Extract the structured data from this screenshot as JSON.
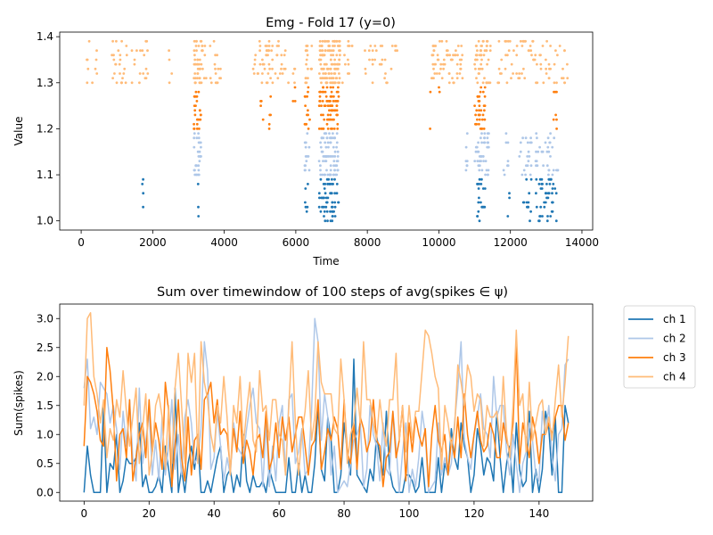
{
  "figure": {
    "colors": {
      "ch1": "#1f77b4",
      "ch2": "#aec7e8",
      "ch3": "#ff7f0e",
      "ch4": "#ffbb78"
    }
  },
  "chart_data": [
    {
      "type": "scatter",
      "title": "Emg - Fold 17 (y=0)",
      "xlabel": "Time",
      "ylabel": "Value",
      "xlim": [
        -600,
        14300
      ],
      "ylim": [
        0.98,
        1.41
      ],
      "xticks": [
        0,
        2000,
        4000,
        6000,
        8000,
        10000,
        12000,
        14000
      ],
      "yticks": [
        1.0,
        1.1,
        1.2,
        1.3,
        1.4
      ],
      "xtick_labels": [
        "0",
        "2000",
        "4000",
        "6000",
        "8000",
        "10000",
        "12000",
        "14000"
      ],
      "ytick_labels": [
        "1.0",
        "1.1",
        "1.2",
        "1.3",
        "1.4"
      ],
      "series": [
        {
          "color": "#1f77b4",
          "band": [
            1.0,
            1.09
          ],
          "clusters": [
            [
              1700,
              1750,
              4
            ],
            [
              3200,
              3300,
              3
            ],
            [
              6250,
              6350,
              6
            ],
            [
              6650,
              7200,
              60
            ],
            [
              11050,
              11300,
              20
            ],
            [
              11900,
              12000,
              3
            ],
            [
              12350,
              12600,
              12
            ],
            [
              12700,
              13300,
              45
            ]
          ]
        },
        {
          "color": "#aec7e8",
          "band": [
            1.1,
            1.19
          ],
          "clusters": [
            [
              3150,
              3350,
              30
            ],
            [
              6250,
              6400,
              14
            ],
            [
              6650,
              7200,
              80
            ],
            [
              10750,
              10800,
              7
            ],
            [
              11000,
              11400,
              45
            ],
            [
              11800,
              11950,
              8
            ],
            [
              12250,
              12600,
              20
            ],
            [
              12700,
              13400,
              32
            ]
          ]
        },
        {
          "color": "#ff7f0e",
          "band": [
            1.2,
            1.29
          ],
          "clusters": [
            [
              3150,
              3350,
              25
            ],
            [
              5000,
              5100,
              4
            ],
            [
              5250,
              5300,
              5
            ],
            [
              5900,
              6000,
              3
            ],
            [
              6250,
              6400,
              14
            ],
            [
              6650,
              7200,
              80
            ],
            [
              9750,
              9800,
              2
            ],
            [
              10000,
              10050,
              2
            ],
            [
              11000,
              11300,
              35
            ],
            [
              13200,
              13300,
              7
            ]
          ]
        },
        {
          "color": "#ffbb78",
          "band": [
            1.3,
            1.39
          ],
          "clusters": [
            [
              150,
              450,
              10
            ],
            [
              850,
              1300,
              25
            ],
            [
              1400,
              1900,
              18
            ],
            [
              2450,
              2550,
              4
            ],
            [
              3150,
              3400,
              45
            ],
            [
              3400,
              3900,
              20
            ],
            [
              4800,
              5350,
              40
            ],
            [
              5350,
              5800,
              18
            ],
            [
              5900,
              6000,
              4
            ],
            [
              6250,
              6450,
              20
            ],
            [
              6650,
              7250,
              130
            ],
            [
              7300,
              7600,
              12
            ],
            [
              7900,
              8200,
              10
            ],
            [
              8200,
              8850,
              20
            ],
            [
              9800,
              10300,
              40
            ],
            [
              10300,
              10700,
              25
            ],
            [
              11000,
              11450,
              50
            ],
            [
              11650,
              12100,
              20
            ],
            [
              12150,
              12450,
              15
            ],
            [
              12500,
              13150,
              30
            ],
            [
              13200,
              13600,
              15
            ]
          ]
        }
      ]
    },
    {
      "type": "line",
      "title": "Sum over timewindow of 100 steps of avg(spikes ∈ ψ)",
      "xlabel": "",
      "ylabel": "Sum(spikes)",
      "xlim": [
        -7.5,
        156.5
      ],
      "ylim": [
        -0.15,
        3.25
      ],
      "xticks": [
        0,
        20,
        40,
        60,
        80,
        100,
        120,
        140
      ],
      "yticks": [
        0.0,
        0.5,
        1.0,
        1.5,
        2.0,
        2.5,
        3.0
      ],
      "xtick_labels": [
        "0",
        "20",
        "40",
        "60",
        "80",
        "100",
        "120",
        "140"
      ],
      "ytick_labels": [
        "0.0",
        "0.5",
        "1.0",
        "1.5",
        "2.0",
        "2.5",
        "3.0"
      ],
      "legend": {
        "placement": "outside-right-top"
      },
      "series": [
        {
          "name": "ch 1",
          "color": "#1f77b4",
          "values": [
            0.0,
            0.8,
            0.3,
            0.0,
            0.0,
            0.0,
            1.5,
            0.0,
            0.5,
            0.4,
            1.0,
            0.0,
            0.2,
            0.6,
            0.5,
            0.5,
            0.6,
            1.2,
            0.1,
            0.3,
            0.0,
            0.0,
            0.1,
            0.3,
            0.0,
            0.8,
            0.4,
            0.0,
            1.8,
            0.0,
            0.4,
            0.0,
            0.5,
            0.8,
            0.4,
            0.9,
            0.0,
            0.0,
            0.2,
            0.0,
            0.3,
            0.6,
            0.8,
            0.0,
            0.3,
            0.4,
            0.0,
            0.3,
            0.1,
            1.0,
            0.2,
            0.0,
            0.3,
            0.1,
            0.1,
            0.2,
            0.0,
            0.4,
            0.2,
            0.0,
            0.0,
            0.0,
            0.0,
            0.6,
            0.0,
            0.0,
            0.5,
            0.0,
            0.3,
            0.0,
            0.0,
            0.5,
            1.5,
            0.4,
            0.2,
            1.3,
            0.9,
            0.0,
            0.0,
            0.3,
            1.2,
            0.7,
            0.3,
            2.3,
            0.3,
            0.2,
            0.1,
            0.0,
            0.4,
            0.2,
            1.0,
            0.6,
            0.3,
            1.4,
            0.4,
            0.1,
            0.0,
            0.0,
            0.0,
            0.3,
            0.3,
            0.2,
            0.0,
            0.1,
            0.6,
            0.0,
            0.0,
            0.0,
            0.0,
            0.6,
            0.0,
            0.5,
            0.3,
            1.1,
            0.6,
            0.4,
            1.2,
            0.8,
            0.6,
            0.0,
            0.3,
            1.1,
            0.8,
            0.3,
            0.6,
            0.5,
            0.2,
            1.4,
            0.6,
            0.0,
            0.5,
            0.8,
            0.0,
            1.2,
            0.4,
            0.1,
            0.2,
            1.4,
            0.0,
            0.4,
            0.0,
            0.4,
            1.4,
            1.1,
            0.3,
            1.3,
            0.0,
            0.0,
            1.5,
            1.2
          ]
        },
        {
          "name": "ch 2",
          "color": "#aec7e8",
          "values": [
            1.8,
            2.3,
            1.1,
            1.3,
            1.0,
            1.9,
            1.8,
            1.7,
            1.2,
            1.5,
            1.1,
            0.4,
            1.4,
            0.8,
            1.6,
            0.6,
            0.2,
            1.8,
            0.5,
            0.9,
            1.4,
            0.3,
            0.9,
            0.2,
            1.3,
            0.3,
            0.8,
            1.6,
            0.4,
            1.0,
            0.3,
            1.3,
            1.6,
            1.2,
            0.5,
            0.6,
            1.1,
            2.6,
            2.1,
            0.4,
            0.6,
            1.4,
            0.8,
            0.2,
            0.6,
            0.3,
            1.2,
            0.8,
            0.7,
            0.6,
            1.1,
            1.5,
            1.8,
            1.2,
            1.1,
            0.1,
            1.2,
            0.1,
            0.8,
            0.2,
            1.2,
            1.5,
            0.3,
            1.6,
            1.7,
            0.5,
            0.7,
            1.1,
            0.3,
            0.4,
            1.4,
            3.0,
            2.6,
            0.9,
            1.7,
            1.3,
            0.3,
            0.8,
            0.0,
            0.1,
            0.2,
            0.1,
            0.5,
            0.9,
            1.0,
            1.2,
            0.1,
            0.4,
            1.5,
            1.0,
            0.8,
            0.2,
            1.2,
            0.4,
            0.3,
            1.4,
            0.8,
            0.0,
            0.7,
            1.2,
            0.0,
            0.4,
            0.1,
            0.6,
            1.4,
            1.0,
            0.0,
            0.1,
            0.2,
            1.2,
            0.3,
            0.6,
            0.3,
            0.5,
            1.2,
            1.8,
            2.6,
            0.9,
            0.6,
            0.4,
            1.0,
            1.3,
            1.7,
            1.1,
            1.0,
            0.6,
            2.0,
            1.3,
            1.5,
            1.5,
            0.7,
            0.3,
            1.0,
            0.5,
            0.0,
            0.5,
            0.7,
            1.2,
            0.9,
            0.3,
            0.2,
            1.4,
            1.0,
            1.5,
            0.6,
            0.2,
            1.0,
            1.1,
            2.2,
            2.3
          ]
        },
        {
          "name": "ch 3",
          "color": "#ff7f0e",
          "values": [
            0.8,
            2.0,
            1.9,
            1.7,
            1.4,
            0.9,
            0.8,
            2.5,
            2.1,
            1.4,
            0.2,
            1.0,
            1.1,
            0.6,
            1.6,
            0.2,
            0.6,
            1.0,
            1.2,
            0.6,
            1.6,
            0.7,
            1.2,
            0.9,
            0.4,
            1.9,
            1.4,
            0.1,
            0.8,
            1.6,
            0.6,
            0.2,
            1.3,
            0.3,
            0.9,
            1.0,
            0.4,
            1.6,
            1.7,
            1.9,
            1.2,
            1.6,
            1.0,
            1.1,
            1.0,
            0.4,
            1.1,
            0.7,
            1.4,
            0.5,
            0.9,
            0.7,
            0.3,
            0.9,
            1.0,
            0.6,
            1.4,
            0.4,
            0.6,
            1.2,
            0.6,
            1.3,
            0.9,
            1.3,
            0.7,
            1.0,
            1.3,
            1.3,
            0.8,
            0.3,
            0.8,
            0.9,
            1.6,
            0.4,
            0.7,
            1.1,
            0.9,
            1.3,
            1.1,
            0.4,
            1.6,
            0.7,
            0.5,
            1.2,
            0.4,
            1.3,
            1.1,
            0.7,
            0.9,
            1.6,
            0.9,
            0.8,
            0.1,
            0.6,
            0.7,
            1.4,
            0.6,
            0.9,
            1.5,
            0.2,
            1.2,
            0.7,
            1.3,
            1.0,
            0.8,
            1.1,
            0.1,
            1.0,
            1.5,
            0.9,
            0.7,
            1.0,
            0.3,
            0.9,
            0.6,
            1.3,
            0.6,
            1.7,
            1.0,
            0.6,
            1.0,
            1.4,
            0.9,
            0.7,
            0.8,
            1.2,
            1.0,
            0.6,
            0.6,
            1.2,
            0.9,
            0.7,
            1.2,
            2.6,
            0.5,
            1.2,
            0.9,
            0.6,
            1.3,
            1.0,
            0.5,
            1.0,
            1.0,
            1.2,
            1.0,
            1.3,
            1.5,
            1.5,
            0.9,
            1.2
          ]
        },
        {
          "name": "ch 4",
          "color": "#ffbb78",
          "values": [
            1.5,
            3.0,
            3.1,
            2.0,
            1.7,
            1.2,
            1.6,
            0.6,
            1.1,
            0.9,
            1.6,
            1.3,
            2.1,
            1.4,
            0.8,
            1.3,
            1.8,
            0.5,
            1.1,
            1.7,
            0.3,
            0.7,
            1.5,
            1.7,
            1.3,
            0.4,
            1.5,
            0.5,
            1.8,
            2.4,
            1.5,
            0.5,
            2.4,
            1.9,
            2.4,
            0.5,
            2.6,
            1.9,
            1.6,
            1.0,
            0.7,
            1.5,
            1.2,
            2.0,
            1.3,
            0.3,
            1.5,
            1.2,
            2.0,
            0.8,
            1.4,
            1.9,
            0.9,
            0.7,
            2.1,
            1.4,
            1.5,
            0.9,
            1.6,
            1.6,
            1.0,
            0.9,
            0.3,
            1.5,
            2.6,
            1.2,
            0.3,
            1.0,
            1.4,
            2.1,
            0.9,
            1.3,
            2.6,
            1.9,
            1.7,
            1.7,
            1.7,
            1.1,
            1.0,
            2.3,
            1.6,
            0.5,
            1.0,
            1.2,
            1.8,
            1.2,
            2.6,
            1.6,
            1.6,
            1.2,
            0.9,
            1.6,
            1.1,
            0.8,
            1.6,
            1.6,
            2.4,
            0.9,
            1.5,
            0.7,
            1.5,
            0.9,
            1.4,
            1.4,
            2.1,
            2.8,
            2.7,
            2.4,
            2.0,
            1.8,
            0.4,
            1.5,
            1.2,
            0.8,
            1.1,
            2.2,
            1.9,
            1.5,
            2.2,
            2.0,
            1.4,
            1.7,
            1.6,
            0.8,
            1.5,
            1.3,
            1.3,
            1.4,
            0.9,
            2.0,
            1.0,
            0.6,
            1.5,
            2.8,
            1.5,
            1.7,
            0.7,
            1.9,
            0.9,
            1.2,
            1.5,
            1.6,
            1.0,
            1.3,
            0.9,
            1.6,
            2.2,
            1.3,
            1.9,
            2.7
          ]
        }
      ]
    }
  ]
}
